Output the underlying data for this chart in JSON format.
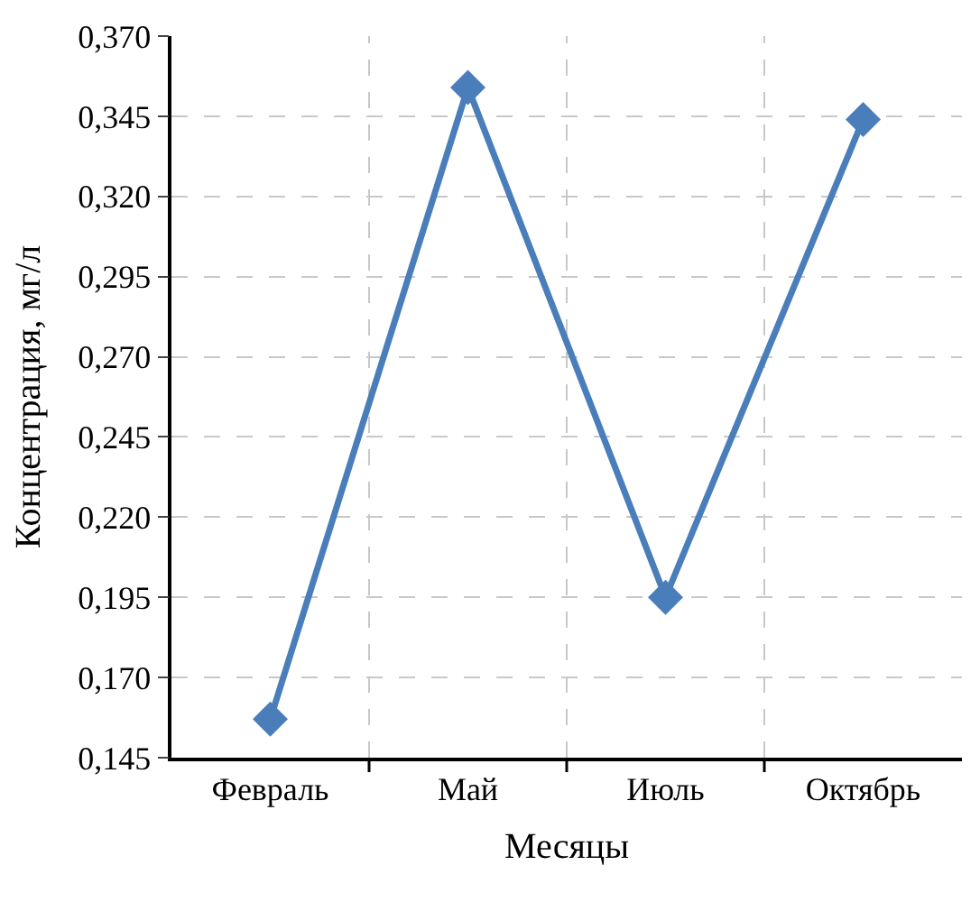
{
  "chart_data": {
    "type": "line",
    "xlabel": "Месяцы",
    "ylabel": "Концентрация, мг/л",
    "categories": [
      "Февраль",
      "Май",
      "Июль",
      "Октябрь"
    ],
    "series": [
      {
        "color": "#4a7ebb",
        "values": [
          0.157,
          0.354,
          0.195,
          0.344
        ]
      }
    ],
    "ylim": [
      0.145,
      0.37
    ],
    "yticks": [
      {
        "value": 0.145,
        "label": "0,145"
      },
      {
        "value": 0.17,
        "label": "0,170"
      },
      {
        "value": 0.195,
        "label": "0,195"
      },
      {
        "value": 0.22,
        "label": "0,220"
      },
      {
        "value": 0.245,
        "label": "0,245"
      },
      {
        "value": 0.27,
        "label": "0,270"
      },
      {
        "value": 0.295,
        "label": "0,295"
      },
      {
        "value": 0.32,
        "label": "0,320"
      },
      {
        "value": 0.345,
        "label": "0,345"
      },
      {
        "value": 0.37,
        "label": "0,370"
      }
    ],
    "grid": true,
    "legend": false,
    "marker": "diamond",
    "line_style": "solid"
  }
}
